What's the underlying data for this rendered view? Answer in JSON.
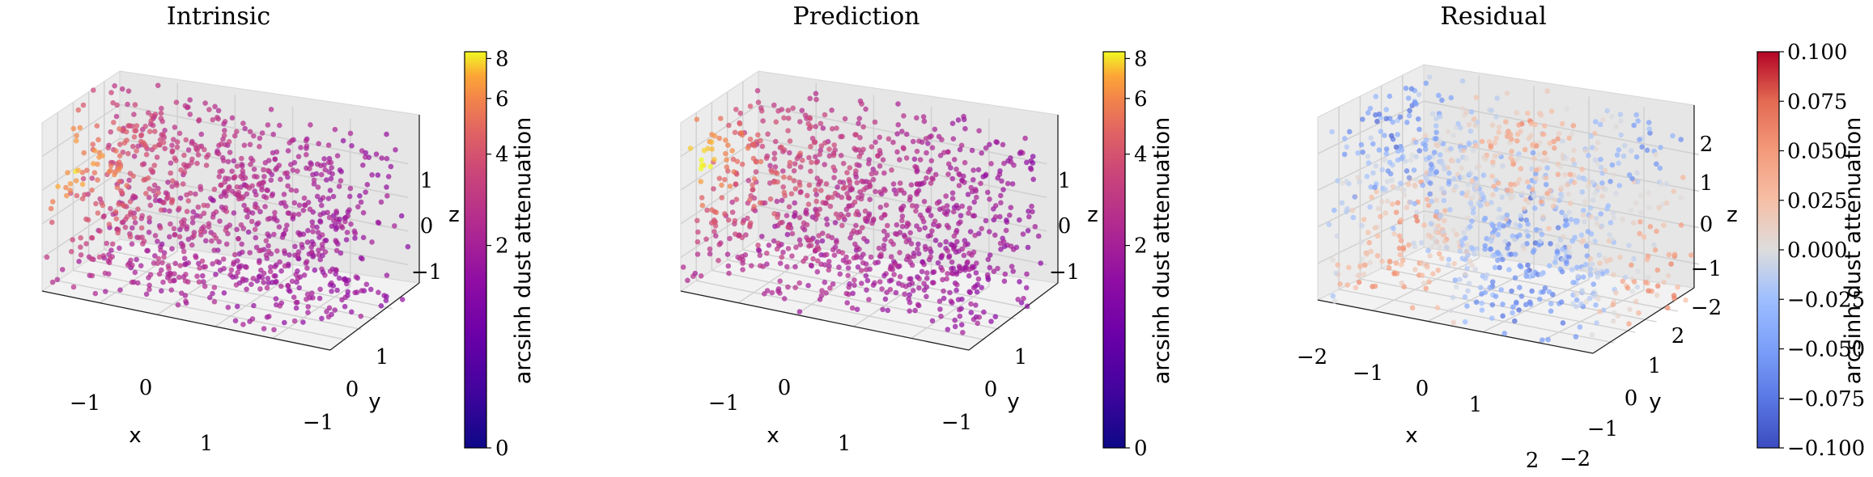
{
  "figure": {
    "panels": [
      {
        "title": "Intrinsic",
        "x_ticks": [
          "−1",
          "0",
          "1"
        ],
        "y_ticks": [
          "−1",
          "0",
          "1"
        ],
        "z_ticks": [
          "−1",
          "0",
          "1"
        ],
        "xlabel": "x",
        "ylabel": "y",
        "zlabel": "z",
        "colorbar": {
          "label": "arcsinh dust attenuation",
          "ticks": [
            "0",
            "2",
            "4",
            "6",
            "8"
          ],
          "colormap": "plasma"
        }
      },
      {
        "title": "Prediction",
        "x_ticks": [
          "−1",
          "0",
          "1"
        ],
        "y_ticks": [
          "−1",
          "0",
          "1"
        ],
        "z_ticks": [
          "−1",
          "0",
          "1"
        ],
        "xlabel": "x",
        "ylabel": "y",
        "zlabel": "z",
        "colorbar": {
          "label": "arcsinh dust attenuation",
          "ticks": [
            "0",
            "2",
            "4",
            "6",
            "8"
          ],
          "colormap": "plasma"
        }
      },
      {
        "title": "Residual",
        "x_ticks": [
          "−2",
          "−1",
          "0",
          "1",
          "2"
        ],
        "y_ticks": [
          "−2",
          "−1",
          "0",
          "1",
          "2"
        ],
        "z_ticks": [
          "−2",
          "−1",
          "0",
          "1",
          "2"
        ],
        "xlabel": "x",
        "ylabel": "y",
        "zlabel": "z",
        "colorbar": {
          "label": "arcsinh dust attenuation",
          "ticks": [
            "−0.100",
            "−0.075",
            "−0.050",
            "−0.025",
            "0.000",
            "0.025",
            "0.050",
            "0.075",
            "0.100"
          ],
          "colormap": "coolwarm"
        }
      }
    ]
  },
  "chart_data": [
    {
      "type": "scatter",
      "title": "Intrinsic",
      "xlabel": "x",
      "ylabel": "y",
      "zlabel": "z",
      "xlim": [
        -1.8,
        1.8
      ],
      "ylim": [
        -1.8,
        1.8
      ],
      "zlim": [
        -1.8,
        1.8
      ],
      "color_label": "arcsinh dust attenuation",
      "color_range": [
        0,
        8.4
      ],
      "colormap": "plasma",
      "grid": true,
      "n_points": 1000
    },
    {
      "type": "scatter",
      "title": "Prediction",
      "xlabel": "x",
      "ylabel": "y",
      "zlabel": "z",
      "xlim": [
        -1.8,
        1.8
      ],
      "ylim": [
        -1.8,
        1.8
      ],
      "zlim": [
        -1.8,
        1.8
      ],
      "color_label": "arcsinh dust attenuation",
      "color_range": [
        0,
        8.4
      ],
      "colormap": "plasma",
      "grid": true,
      "n_points": 1000
    },
    {
      "type": "scatter",
      "title": "Residual",
      "xlabel": "x",
      "ylabel": "y",
      "zlabel": "z",
      "xlim": [
        -2.2,
        2.2
      ],
      "ylim": [
        -2.2,
        2.2
      ],
      "zlim": [
        -2.2,
        2.2
      ],
      "color_label": "arcsinh dust attenuation",
      "color_range": [
        -0.1,
        0.1
      ],
      "colormap": "coolwarm",
      "grid": true,
      "n_points": 1000
    }
  ]
}
